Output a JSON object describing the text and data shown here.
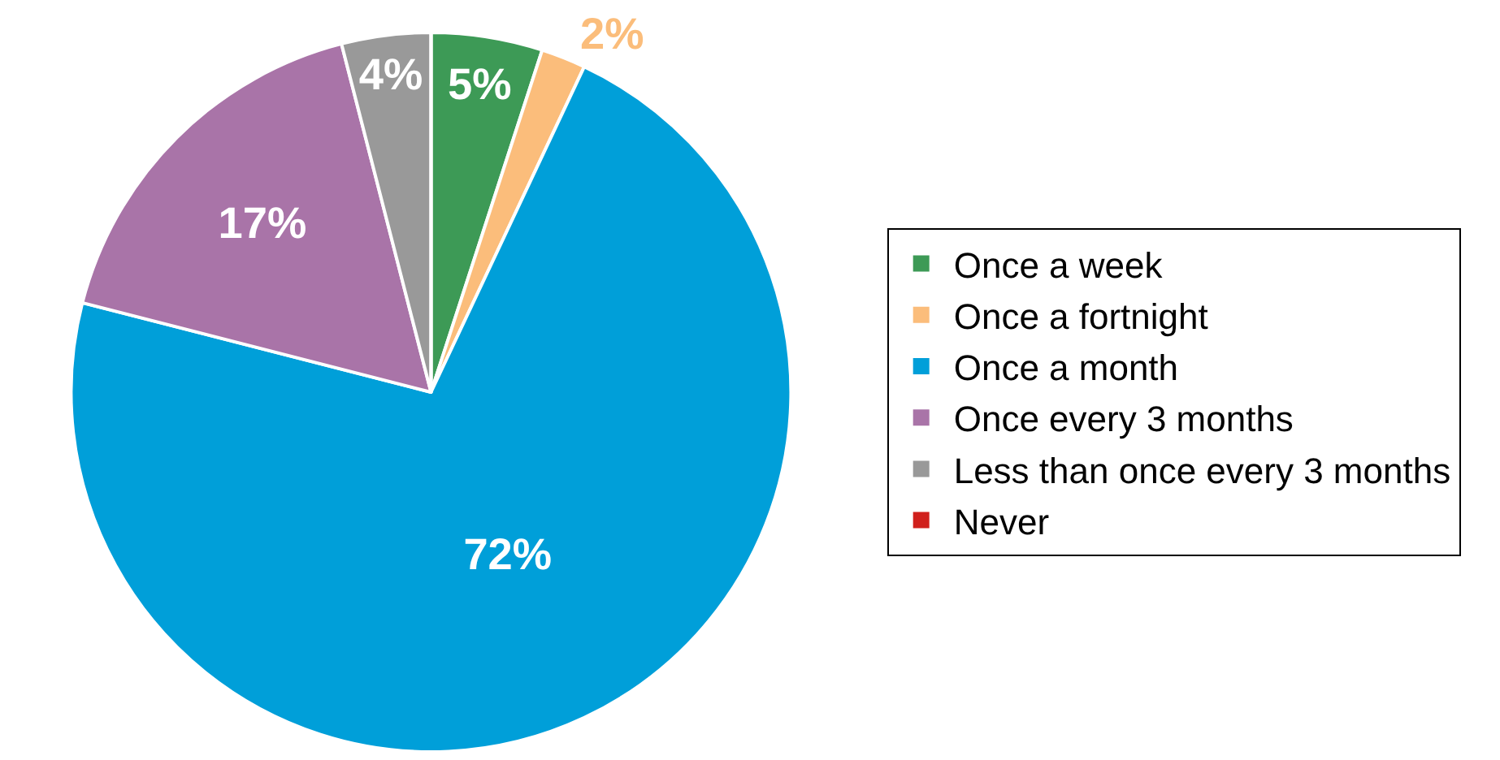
{
  "chart_data": {
    "type": "pie",
    "categories": [
      "Once a week",
      "Once a fortnight",
      "Once a month",
      "Once every 3 months",
      "Less than once every 3 months",
      "Never"
    ],
    "values": [
      5,
      2,
      72,
      17,
      4,
      0
    ],
    "colors": [
      "#3d9a56",
      "#fbbd7b",
      "#009fd9",
      "#a974a8",
      "#999999",
      "#d0201c"
    ],
    "value_labels": [
      "5%",
      "2%",
      "72%",
      "17%",
      "4%",
      null
    ],
    "legend": "right"
  }
}
